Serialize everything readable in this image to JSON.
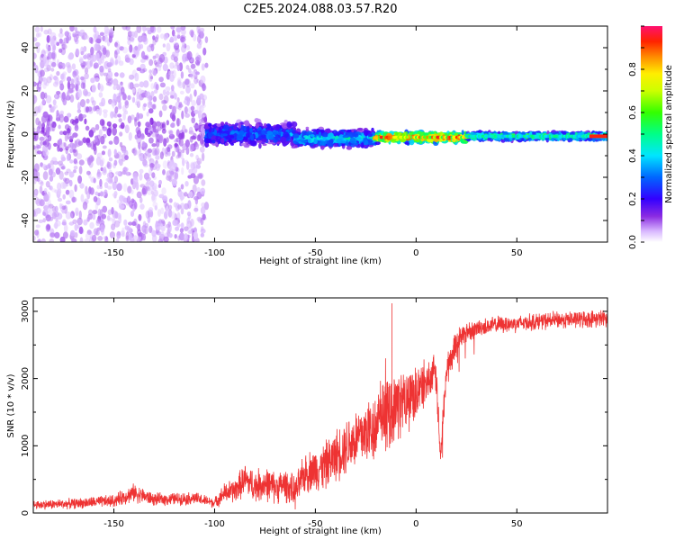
{
  "figure_title": "C2E5.2024.088.03.57.R20",
  "chart_data": [
    {
      "type": "heatmap",
      "xlabel": "Height of straight line (km)",
      "ylabel": "Frequency (Hz)",
      "xlim": [
        -190,
        95
      ],
      "ylim": [
        -50,
        50
      ],
      "x_ticks": [
        -150,
        -100,
        -50,
        0,
        50
      ],
      "x_tick_labels": [
        "-150",
        "-100",
        "-50",
        "0",
        "50"
      ],
      "y_ticks": [
        -40,
        -20,
        0,
        20,
        40
      ],
      "y_tick_labels": [
        "-40",
        "-20",
        "0",
        "20",
        "40"
      ],
      "colorbar": {
        "label": "Normalized spectral amplitude",
        "range": [
          0,
          1
        ],
        "ticks": [
          0,
          0.2,
          0.4,
          0.6,
          0.8
        ],
        "tick_labels": [
          "0.0",
          "0.2",
          "0.4",
          "0.6",
          "0.8"
        ],
        "colors": [
          "#ffffff",
          "#d9b8ff",
          "#8a2be2",
          "#3300ff",
          "#0066ff",
          "#00e5ff",
          "#00ff66",
          "#66ff00",
          "#ffff00",
          "#ff8800",
          "#ff2200",
          "#ff1070"
        ]
      },
      "bands": [
        {
          "x_range": [
            -190,
            -104
          ],
          "center_hz": 0,
          "width_hz": 50,
          "amplitude": 0.06,
          "note": "noise"
        },
        {
          "x_range": [
            -104,
            -60
          ],
          "center_hz": 0,
          "width_hz": 7,
          "amplitude": 0.3
        },
        {
          "x_range": [
            -60,
            -20
          ],
          "center_hz": -2,
          "width_hz": 5,
          "amplitude": 0.38
        },
        {
          "x_range": [
            -20,
            25
          ],
          "center_hz": -1.5,
          "width_hz": 3,
          "amplitude": 0.7
        },
        {
          "x_range": [
            25,
            95
          ],
          "center_hz": -1,
          "width_hz": 2,
          "amplitude": 0.45
        }
      ],
      "grid": false
    },
    {
      "type": "line",
      "xlabel": "Height of straight line (km)",
      "ylabel": "SNR (10 * v/v)",
      "xlim": [
        -190,
        95
      ],
      "ylim": [
        0,
        3200
      ],
      "x_ticks": [
        -150,
        -100,
        -50,
        0,
        50
      ],
      "x_tick_labels": [
        "-150",
        "-100",
        "-50",
        "0",
        "50"
      ],
      "y_ticks": [
        0,
        1000,
        2000,
        3000
      ],
      "y_tick_labels": [
        "0",
        "1000",
        "2000",
        "3000"
      ],
      "color": "#ee3333",
      "series": [
        {
          "x": [
            -190,
            -170,
            -150,
            -140,
            -130,
            -110,
            -100,
            -95,
            -90,
            -85,
            -80,
            -75,
            -70,
            -65,
            -60,
            -55,
            -50,
            -45,
            -40,
            -35,
            -30,
            -25,
            -20,
            -15,
            -10,
            -5,
            0,
            5,
            10,
            12,
            15,
            20,
            25,
            30,
            40,
            50,
            60,
            70,
            80,
            90,
            95
          ],
          "values": [
            120,
            140,
            180,
            300,
            200,
            220,
            150,
            300,
            330,
            500,
            400,
            440,
            380,
            420,
            300,
            600,
            650,
            700,
            850,
            1000,
            1100,
            1200,
            1300,
            1450,
            1600,
            1700,
            1800,
            1950,
            2050,
            800,
            2100,
            2550,
            2700,
            2750,
            2800,
            2820,
            2850,
            2870,
            2880,
            2890,
            2900
          ],
          "noise_amplitude": [
            80,
            90,
            110,
            160,
            110,
            110,
            90,
            180,
            220,
            280,
            280,
            300,
            280,
            280,
            280,
            350,
            380,
            420,
            450,
            500,
            550,
            600,
            600,
            600,
            600,
            550,
            500,
            400,
            350,
            300,
            300,
            250,
            200,
            150,
            150,
            150,
            150,
            150,
            150,
            150,
            150
          ]
        }
      ],
      "grid": false
    }
  ]
}
